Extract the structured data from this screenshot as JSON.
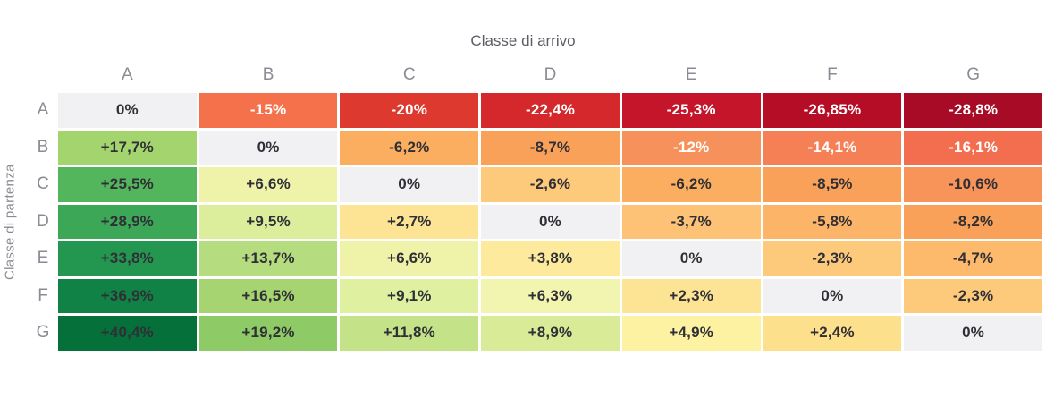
{
  "title": "Classe di arrivo",
  "y_axis_label": "Classe di partenza",
  "columns": [
    "A",
    "B",
    "C",
    "D",
    "E",
    "F",
    "G"
  ],
  "rows": [
    {
      "label": "A",
      "cells": [
        {
          "t": "0%",
          "bg": "#f1f1f3",
          "fg": "#2f2f35"
        },
        {
          "t": "-15%",
          "bg": "#f4714c",
          "fg": "#ffffff"
        },
        {
          "t": "-20%",
          "bg": "#de392e",
          "fg": "#ffffff"
        },
        {
          "t": "-22,4%",
          "bg": "#d5282c",
          "fg": "#ffffff"
        },
        {
          "t": "-25,3%",
          "bg": "#c5152b",
          "fg": "#ffffff"
        },
        {
          "t": "-26,85%",
          "bg": "#b60d26",
          "fg": "#ffffff"
        },
        {
          "t": "-28,8%",
          "bg": "#a70b25",
          "fg": "#ffffff"
        }
      ]
    },
    {
      "label": "B",
      "cells": [
        {
          "t": "+17,7%",
          "bg": "#a3d46e",
          "fg": "#2f2f35"
        },
        {
          "t": "0%",
          "bg": "#f1f1f3",
          "fg": "#2f2f35"
        },
        {
          "t": "-6,2%",
          "bg": "#fbae60",
          "fg": "#2f2f35"
        },
        {
          "t": "-8,7%",
          "bg": "#f9a159",
          "fg": "#2f2f35"
        },
        {
          "t": "-12%",
          "bg": "#f7915c",
          "fg": "#ffffff"
        },
        {
          "t": "-14,1%",
          "bg": "#f58056",
          "fg": "#ffffff"
        },
        {
          "t": "-16,1%",
          "bg": "#f26e4e",
          "fg": "#ffffff"
        }
      ]
    },
    {
      "label": "C",
      "cells": [
        {
          "t": "+25,5%",
          "bg": "#54b65c",
          "fg": "#2f2f35"
        },
        {
          "t": "+6,6%",
          "bg": "#eff3aa",
          "fg": "#2f2f35"
        },
        {
          "t": "0%",
          "bg": "#f1f1f3",
          "fg": "#2f2f35"
        },
        {
          "t": "-2,6%",
          "bg": "#fdc97b",
          "fg": "#2f2f35"
        },
        {
          "t": "-6,2%",
          "bg": "#fbae60",
          "fg": "#2f2f35"
        },
        {
          "t": "-8,5%",
          "bg": "#f9a159",
          "fg": "#2f2f35"
        },
        {
          "t": "-10,6%",
          "bg": "#f8935a",
          "fg": "#2f2f35"
        }
      ]
    },
    {
      "label": "D",
      "cells": [
        {
          "t": "+28,9%",
          "bg": "#3ba757",
          "fg": "#2f2f35"
        },
        {
          "t": "+9,5%",
          "bg": "#dcee9c",
          "fg": "#2f2f35"
        },
        {
          "t": "+2,7%",
          "bg": "#fde495",
          "fg": "#2f2f35"
        },
        {
          "t": "0%",
          "bg": "#f1f1f3",
          "fg": "#2f2f35"
        },
        {
          "t": "-3,7%",
          "bg": "#fdc276",
          "fg": "#2f2f35"
        },
        {
          "t": "-5,8%",
          "bg": "#fcb468",
          "fg": "#2f2f35"
        },
        {
          "t": "-8,2%",
          "bg": "#f9a159",
          "fg": "#2f2f35"
        }
      ]
    },
    {
      "label": "E",
      "cells": [
        {
          "t": "+33,8%",
          "bg": "#23964f",
          "fg": "#2f2f35"
        },
        {
          "t": "+13,7%",
          "bg": "#b5dc7e",
          "fg": "#2f2f35"
        },
        {
          "t": "+6,6%",
          "bg": "#eff3aa",
          "fg": "#2f2f35"
        },
        {
          "t": "+3,8%",
          "bg": "#fdea9c",
          "fg": "#2f2f35"
        },
        {
          "t": "0%",
          "bg": "#f1f1f3",
          "fg": "#2f2f35"
        },
        {
          "t": "-2,3%",
          "bg": "#fdc97b",
          "fg": "#2f2f35"
        },
        {
          "t": "-4,7%",
          "bg": "#fdb96c",
          "fg": "#2f2f35"
        }
      ]
    },
    {
      "label": "F",
      "cells": [
        {
          "t": "+36,9%",
          "bg": "#108245",
          "fg": "#2f2f35"
        },
        {
          "t": "+16,5%",
          "bg": "#a5d470",
          "fg": "#2f2f35"
        },
        {
          "t": "+9,1%",
          "bg": "#dff0a0",
          "fg": "#2f2f35"
        },
        {
          "t": "+6,3%",
          "bg": "#f1f5af",
          "fg": "#2f2f35"
        },
        {
          "t": "+2,3%",
          "bg": "#fde495",
          "fg": "#2f2f35"
        },
        {
          "t": "0%",
          "bg": "#f1f1f3",
          "fg": "#2f2f35"
        },
        {
          "t": "-2,3%",
          "bg": "#fdc97b",
          "fg": "#2f2f35"
        }
      ]
    },
    {
      "label": "G",
      "cells": [
        {
          "t": "+40,4%",
          "bg": "#05703a",
          "fg": "#2f2f35"
        },
        {
          "t": "+19,2%",
          "bg": "#8ecb66",
          "fg": "#2f2f35"
        },
        {
          "t": "+11,8%",
          "bg": "#c4e388",
          "fg": "#2f2f35"
        },
        {
          "t": "+8,9%",
          "bg": "#d9eb96",
          "fg": "#2f2f35"
        },
        {
          "t": "+4,9%",
          "bg": "#fdf2a2",
          "fg": "#2f2f35"
        },
        {
          "t": "+2,4%",
          "bg": "#fde08c",
          "fg": "#2f2f35"
        },
        {
          "t": "0%",
          "bg": "#f1f1f3",
          "fg": "#2f2f35"
        }
      ]
    }
  ],
  "colors": {
    "zero_cell_bg": "#f1f1f3",
    "dark_text": "#2f2f35",
    "light_text": "#ffffff",
    "axis_text": "#8b8b93",
    "title_text": "#5e5b64",
    "max_negative": "#a70b25",
    "max_positive": "#05703a"
  },
  "chart_data": {
    "type": "heatmap",
    "title": "Classe di arrivo",
    "xlabel": "Classe di arrivo",
    "ylabel": "Classe di partenza",
    "x_categories": [
      "A",
      "B",
      "C",
      "D",
      "E",
      "F",
      "G"
    ],
    "y_categories": [
      "A",
      "B",
      "C",
      "D",
      "E",
      "F",
      "G"
    ],
    "values": [
      [
        0,
        -15,
        -20,
        -22.4,
        -25.3,
        -26.85,
        -28.8
      ],
      [
        17.7,
        0,
        -6.2,
        -8.7,
        -12,
        -14.1,
        -16.1
      ],
      [
        25.5,
        6.6,
        0,
        -2.6,
        -6.2,
        -8.5,
        -10.6
      ],
      [
        28.9,
        9.5,
        2.7,
        0,
        -3.7,
        -5.8,
        -8.2
      ],
      [
        33.8,
        13.7,
        6.6,
        3.8,
        0,
        -2.3,
        -4.7
      ],
      [
        36.9,
        16.5,
        9.1,
        6.3,
        2.3,
        0,
        -2.3
      ],
      [
        40.4,
        19.2,
        11.8,
        8.9,
        4.9,
        2.4,
        0
      ]
    ],
    "value_unit": "%",
    "value_format": "signed percent, Italian decimal comma",
    "colormap": "diverging red-yellow-green (negative=red/orange, positive=green), zero diagonal shown gray",
    "grid": false,
    "legend": "none"
  }
}
